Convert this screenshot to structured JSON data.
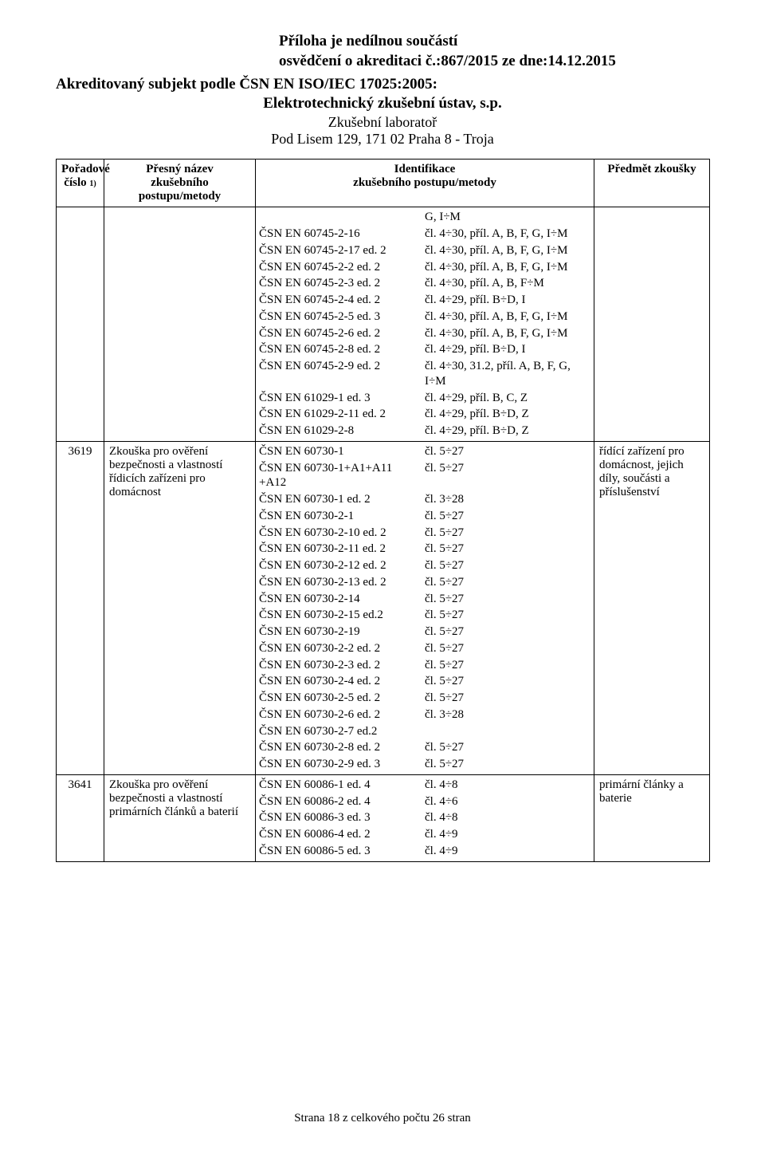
{
  "header": {
    "line1": "Příloha je nedílnou součástí",
    "line2": "osvědčení o akreditaci č.:867/2015 ze dne:14.12.2015",
    "subject": "Akreditovaný subjekt podle ČSN EN ISO/IEC 17025:2005:",
    "org": "Elektrotechnický zkušební ústav, s.p.",
    "lab": "Zkušební laboratoř",
    "addr": "Pod Lisem 129, 171 02  Praha 8 - Troja"
  },
  "columns": {
    "c1a": "Pořadové",
    "c1b": "číslo",
    "c1sup": "1)",
    "c2a": "Přesný název",
    "c2b": "zkušebního postupu/metody",
    "c3a": "Identifikace",
    "c3b": "zkušebního postupu/metody",
    "c4": "Předmět zkoušky"
  },
  "rows": [
    {
      "num": "",
      "name": "",
      "ident": [
        [
          "",
          "G, I÷M"
        ],
        [
          "ČSN EN 60745-2-16",
          "čl. 4÷30, příl. A, B, F, G, I÷M"
        ],
        [
          "ČSN EN 60745-2-17 ed. 2",
          "čl. 4÷30, příl. A, B, F, G, I÷M"
        ],
        [
          "ČSN EN 60745-2-2 ed. 2",
          "čl. 4÷30, příl. A, B, F, G, I÷M"
        ],
        [
          "ČSN EN 60745-2-3 ed. 2",
          "čl. 4÷30, příl. A, B, F÷M"
        ],
        [
          "ČSN EN 60745-2-4 ed. 2",
          "čl. 4÷29, příl. B÷D, I"
        ],
        [
          "ČSN EN 60745-2-5 ed. 3",
          "čl. 4÷30, příl. A, B, F, G, I÷M"
        ],
        [
          "ČSN EN 60745-2-6 ed. 2",
          "čl. 4÷30, příl. A, B, F, G, I÷M"
        ],
        [
          "ČSN EN 60745-2-8 ed. 2",
          "čl. 4÷29, příl. B÷D, I"
        ],
        [
          "ČSN EN 60745-2-9 ed. 2",
          "čl. 4÷30, 31.2, příl. A, B, F, G, I÷M"
        ],
        [
          "ČSN EN 61029-1 ed. 3",
          "čl. 4÷29, příl. B, C, Z"
        ],
        [
          "ČSN EN 61029-2-11 ed. 2",
          "čl. 4÷29, příl. B÷D, Z"
        ],
        [
          "ČSN EN 61029-2-8",
          "čl. 4÷29, příl. B÷D, Z"
        ]
      ],
      "subj": ""
    },
    {
      "num": "3619",
      "name": "Zkouška pro ověření bezpečnosti a vlastností řídicích zařízeni pro domácnost",
      "ident": [
        [
          "ČSN EN 60730-1",
          "čl. 5÷27"
        ],
        [
          "ČSN EN 60730-1+A1+A11 +A12",
          "čl. 5÷27"
        ],
        [
          "ČSN EN 60730-1 ed. 2",
          "čl. 3÷28"
        ],
        [
          "ČSN EN 60730-2-1",
          "čl. 5÷27"
        ],
        [
          "ČSN EN 60730-2-10 ed. 2",
          "čl. 5÷27"
        ],
        [
          "ČSN EN 60730-2-11 ed. 2",
          "čl. 5÷27"
        ],
        [
          "ČSN EN 60730-2-12 ed. 2",
          "čl. 5÷27"
        ],
        [
          "ČSN EN 60730-2-13 ed. 2",
          "čl. 5÷27"
        ],
        [
          "ČSN EN 60730-2-14",
          "čl. 5÷27"
        ],
        [
          "ČSN EN 60730-2-15 ed.2",
          "čl. 5÷27"
        ],
        [
          "ČSN EN 60730-2-19",
          "čl. 5÷27"
        ],
        [
          "ČSN EN 60730-2-2 ed. 2",
          "čl. 5÷27"
        ],
        [
          "ČSN EN 60730-2-3 ed. 2",
          "čl. 5÷27"
        ],
        [
          "ČSN EN 60730-2-4 ed. 2",
          "čl. 5÷27"
        ],
        [
          "ČSN EN 60730-2-5 ed. 2",
          "čl. 5÷27"
        ],
        [
          "ČSN EN 60730-2-6 ed. 2",
          "čl. 3÷28"
        ],
        [
          "ČSN EN 60730-2-7 ed.2",
          ""
        ],
        [
          "ČSN EN 60730-2-8 ed. 2",
          "čl. 5÷27"
        ],
        [
          "ČSN EN 60730-2-9 ed. 3",
          "čl. 5÷27"
        ]
      ],
      "subj": "řídící zařízení pro domácnost, jejich díly, součásti a příslušenství"
    },
    {
      "num": "3641",
      "name": "Zkouška pro ověření bezpečnosti a vlastností primárních článků a baterií",
      "ident": [
        [
          "ČSN EN 60086-1 ed. 4",
          "čl. 4÷8"
        ],
        [
          "ČSN EN 60086-2 ed. 4",
          "čl. 4÷6"
        ],
        [
          "ČSN EN 60086-3 ed. 3",
          "čl. 4÷8"
        ],
        [
          "ČSN EN 60086-4 ed. 2",
          "čl. 4÷9"
        ],
        [
          "ČSN EN 60086-5 ed. 3",
          "čl. 4÷9"
        ]
      ],
      "subj": "primární články a baterie"
    }
  ],
  "footer": "Strana 18 z celkového počtu 26 stran"
}
